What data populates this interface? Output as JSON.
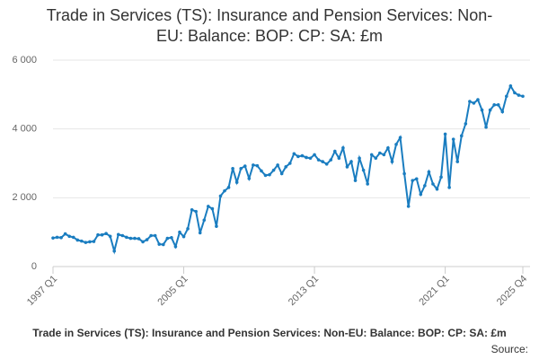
{
  "chart_data": {
    "type": "line",
    "title": "Trade in Services (TS): Insurance and Pension Services: Non-EU: Balance: BOP: CP: SA: £m",
    "x_label": "Trade in Services (TS): Insurance and Pension Services: Non-EU: Balance: BOP: CP: SA: £m",
    "source": "Source:",
    "categories": [
      "1997 Q1",
      null,
      null,
      null,
      null,
      null,
      null,
      null,
      null,
      null,
      null,
      null,
      null,
      null,
      null,
      null,
      null,
      null,
      null,
      null,
      null,
      null,
      null,
      null,
      null,
      null,
      null,
      null,
      null,
      null,
      null,
      null,
      "2005 Q1",
      null,
      null,
      null,
      null,
      null,
      null,
      null,
      null,
      null,
      null,
      null,
      null,
      null,
      null,
      null,
      null,
      null,
      null,
      null,
      null,
      null,
      null,
      null,
      null,
      null,
      null,
      null,
      null,
      null,
      null,
      null,
      "2013 Q1",
      null,
      null,
      null,
      null,
      null,
      null,
      null,
      null,
      null,
      null,
      null,
      null,
      null,
      null,
      null,
      null,
      null,
      null,
      null,
      null,
      null,
      null,
      null,
      null,
      null,
      null,
      null,
      null,
      null,
      null,
      null,
      "2021 Q1",
      null,
      null,
      null,
      null,
      null,
      null,
      null,
      null,
      null,
      null,
      null,
      null,
      null,
      null,
      null,
      null,
      null,
      null,
      "2025 Q4"
    ],
    "series": [
      {
        "name": "Balance",
        "color": "#1a7dc0",
        "values": [
          830,
          850,
          840,
          950,
          880,
          850,
          770,
          740,
          700,
          720,
          730,
          920,
          920,
          960,
          880,
          450,
          930,
          900,
          850,
          820,
          820,
          810,
          720,
          780,
          900,
          900,
          650,
          640,
          820,
          840,
          580,
          1000,
          870,
          1100,
          1650,
          1600,
          980,
          1350,
          1750,
          1680,
          1170,
          2050,
          2200,
          2300,
          2850,
          2450,
          2850,
          2920,
          2560,
          2950,
          2930,
          2780,
          2650,
          2670,
          2800,
          2950,
          2700,
          2900,
          3000,
          3280,
          3200,
          3220,
          3170,
          3150,
          3250,
          3100,
          3050,
          2980,
          3100,
          3350,
          3150,
          3450,
          2900,
          3050,
          2500,
          3150,
          2800,
          2400,
          3250,
          3150,
          3300,
          3250,
          3450,
          3050,
          3550,
          3750,
          2700,
          1750,
          2500,
          2550,
          2100,
          2350,
          2750,
          2400,
          2250,
          2600,
          3850,
          2300,
          3700,
          3050,
          3800,
          4150,
          4800,
          4750,
          4850,
          4550,
          4050,
          4550,
          4700,
          4700,
          4500,
          4950,
          5250,
          5050,
          4980,
          4950
        ]
      }
    ],
    "ylim": [
      0,
      6000
    ],
    "yticks": [
      0,
      {
        "value": 2000,
        "label": "2 000"
      },
      {
        "value": 4000,
        "label": "4 000"
      },
      {
        "value": 6000,
        "label": "6 000"
      }
    ],
    "grid": true
  }
}
